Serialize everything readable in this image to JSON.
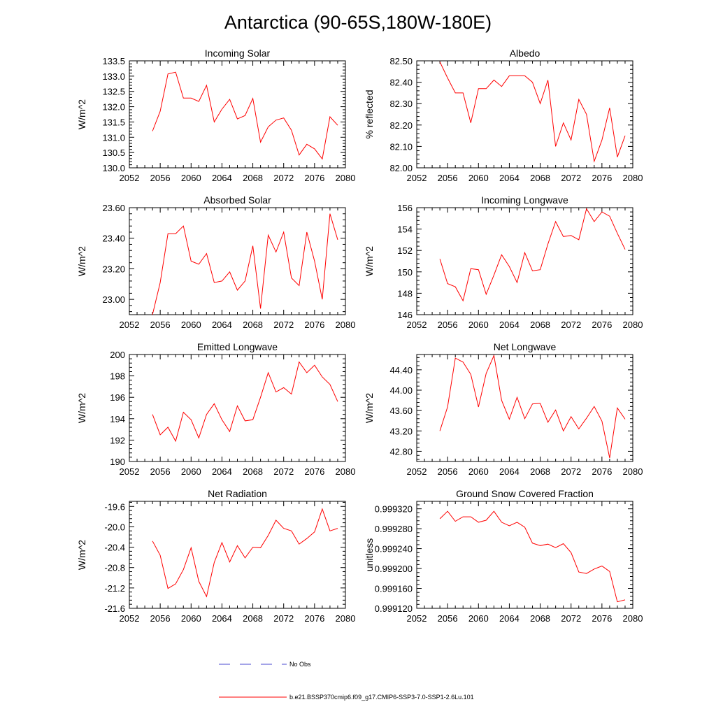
{
  "title": "Antarctica (90-65S,180W-180E)",
  "colors": {
    "series": "#ff0000",
    "obs": "#4a4ad0",
    "axis": "#000000"
  },
  "legend": [
    {
      "label": "No Obs",
      "style": "dashed",
      "color": "#4a4ad0"
    },
    {
      "label": "b.e21.BSSP370cmip6.f09_g17.CMIP6-SSP3-7.0-SSP1-2.6Lu.101",
      "style": "solid",
      "color": "#ff0000"
    }
  ],
  "chart_data": [
    {
      "type": "line",
      "title": "Incoming Solar",
      "ylabel": "W/m^2",
      "xlim": [
        2052,
        2080
      ],
      "xticks": [
        "2052",
        "2056",
        "2060",
        "2064",
        "2068",
        "2072",
        "2076",
        "2080"
      ],
      "ylim": [
        130.0,
        133.5
      ],
      "yticks": [
        "130.0",
        "130.5",
        "131.0",
        "131.5",
        "132.0",
        "132.5",
        "133.0",
        "133.5"
      ],
      "x": [
        2055,
        2056,
        2057,
        2058,
        2059,
        2060,
        2061,
        2062,
        2063,
        2064,
        2065,
        2066,
        2067,
        2068,
        2069,
        2070,
        2071,
        2072,
        2073,
        2074,
        2075,
        2076,
        2077,
        2078,
        2079
      ],
      "y": [
        131.2,
        131.85,
        133.07,
        133.13,
        132.28,
        132.28,
        132.17,
        132.7,
        131.5,
        131.92,
        132.24,
        131.6,
        131.71,
        132.27,
        130.84,
        131.34,
        131.56,
        131.63,
        131.23,
        130.42,
        130.77,
        130.62,
        130.29,
        131.67,
        131.39
      ]
    },
    {
      "type": "line",
      "title": "Albedo",
      "ylabel": "% reflected",
      "xlim": [
        2052,
        2080
      ],
      "xticks": [
        "2052",
        "2056",
        "2060",
        "2064",
        "2068",
        "2072",
        "2076",
        "2080"
      ],
      "ylim": [
        82.0,
        82.5
      ],
      "yticks": [
        "82.00",
        "82.10",
        "82.20",
        "82.30",
        "82.40",
        "82.50"
      ],
      "x": [
        2055,
        2056,
        2057,
        2058,
        2059,
        2060,
        2061,
        2062,
        2063,
        2064,
        2065,
        2066,
        2067,
        2068,
        2069,
        2070,
        2071,
        2072,
        2073,
        2074,
        2075,
        2076,
        2077,
        2078,
        2079
      ],
      "y": [
        82.495,
        82.42,
        82.35,
        82.35,
        82.21,
        82.37,
        82.37,
        82.41,
        82.38,
        82.43,
        82.43,
        82.43,
        82.4,
        82.3,
        82.41,
        82.1,
        82.21,
        82.13,
        82.32,
        82.25,
        82.03,
        82.13,
        82.28,
        82.05,
        82.15
      ]
    },
    {
      "type": "line",
      "title": "Absorbed Solar",
      "ylabel": "W/m^2",
      "xlim": [
        2052,
        2080
      ],
      "xticks": [
        "2052",
        "2056",
        "2060",
        "2064",
        "2068",
        "2072",
        "2076",
        "2080"
      ],
      "ylim": [
        22.9,
        23.6
      ],
      "yticks": [
        "23.00",
        "23.20",
        "23.40",
        "23.60"
      ],
      "x": [
        2055,
        2056,
        2057,
        2058,
        2059,
        2060,
        2061,
        2062,
        2063,
        2064,
        2065,
        2066,
        2067,
        2068,
        2069,
        2070,
        2071,
        2072,
        2073,
        2074,
        2075,
        2076,
        2077,
        2078,
        2079
      ],
      "y": [
        22.9,
        23.11,
        23.43,
        23.43,
        23.48,
        23.25,
        23.23,
        23.3,
        23.11,
        23.12,
        23.18,
        23.06,
        23.12,
        23.35,
        22.94,
        23.42,
        23.31,
        23.44,
        23.14,
        23.09,
        23.44,
        23.25,
        23.0,
        23.56,
        23.39
      ]
    },
    {
      "type": "line",
      "title": "Incoming Longwave",
      "ylabel": "W/m^2",
      "xlim": [
        2052,
        2080
      ],
      "xticks": [
        "2052",
        "2056",
        "2060",
        "2064",
        "2068",
        "2072",
        "2076",
        "2080"
      ],
      "ylim": [
        146,
        156
      ],
      "yticks": [
        "146",
        "148",
        "150",
        "152",
        "154",
        "156"
      ],
      "x": [
        2055,
        2056,
        2057,
        2058,
        2059,
        2060,
        2061,
        2062,
        2063,
        2064,
        2065,
        2066,
        2067,
        2068,
        2069,
        2070,
        2071,
        2072,
        2073,
        2074,
        2075,
        2076,
        2077,
        2078,
        2079
      ],
      "y": [
        151.2,
        148.9,
        148.6,
        147.3,
        150.3,
        150.2,
        147.9,
        149.7,
        151.6,
        150.5,
        149.0,
        151.8,
        150.1,
        150.2,
        152.6,
        154.7,
        153.3,
        153.4,
        153.0,
        155.9,
        154.7,
        155.6,
        155.2,
        153.6,
        152.1
      ]
    },
    {
      "type": "line",
      "title": "Emitted Longwave",
      "ylabel": "W/m^2",
      "xlim": [
        2052,
        2080
      ],
      "xticks": [
        "2052",
        "2056",
        "2060",
        "2064",
        "2068",
        "2072",
        "2076",
        "2080"
      ],
      "ylim": [
        190,
        200
      ],
      "yticks": [
        "190",
        "192",
        "194",
        "196",
        "198",
        "200"
      ],
      "x": [
        2055,
        2056,
        2057,
        2058,
        2059,
        2060,
        2061,
        2062,
        2063,
        2064,
        2065,
        2066,
        2067,
        2068,
        2069,
        2070,
        2071,
        2072,
        2073,
        2074,
        2075,
        2076,
        2077,
        2078,
        2079
      ],
      "y": [
        194.4,
        192.5,
        193.2,
        191.9,
        194.6,
        193.9,
        192.2,
        194.4,
        195.4,
        193.9,
        192.8,
        195.2,
        193.8,
        193.9,
        196.0,
        198.3,
        196.5,
        196.9,
        196.3,
        199.3,
        198.3,
        199.0,
        197.9,
        197.2,
        195.6
      ]
    },
    {
      "type": "line",
      "title": "Net Longwave",
      "ylabel": "W/m^2",
      "xlim": [
        2052,
        2080
      ],
      "xticks": [
        "2052",
        "2056",
        "2060",
        "2064",
        "2068",
        "2072",
        "2076",
        "2080"
      ],
      "ylim": [
        42.6,
        44.7
      ],
      "yticks": [
        "42.80",
        "43.20",
        "43.60",
        "44.00",
        "44.40"
      ],
      "x": [
        2055,
        2056,
        2057,
        2058,
        2059,
        2060,
        2061,
        2062,
        2063,
        2064,
        2065,
        2066,
        2067,
        2068,
        2069,
        2070,
        2071,
        2072,
        2073,
        2074,
        2075,
        2076,
        2077,
        2078,
        2079
      ],
      "y": [
        43.2,
        43.67,
        44.63,
        44.55,
        44.31,
        43.67,
        44.33,
        44.68,
        43.8,
        43.43,
        43.86,
        43.44,
        43.73,
        43.74,
        43.37,
        43.61,
        43.2,
        43.48,
        43.24,
        43.45,
        43.68,
        43.39,
        42.67,
        43.65,
        43.43
      ]
    },
    {
      "type": "line",
      "title": "Net Radiation",
      "ylabel": "W/m^2",
      "xlim": [
        2052,
        2080
      ],
      "xticks": [
        "2052",
        "2056",
        "2060",
        "2064",
        "2068",
        "2072",
        "2076",
        "2080"
      ],
      "ylim": [
        -21.6,
        -19.5
      ],
      "yticks": [
        "-21.6",
        "-21.2",
        "-20.8",
        "-20.4",
        "-20.0",
        "-19.6"
      ],
      "x": [
        2055,
        2056,
        2057,
        2058,
        2059,
        2060,
        2061,
        2062,
        2063,
        2064,
        2065,
        2066,
        2067,
        2068,
        2069,
        2070,
        2071,
        2072,
        2073,
        2074,
        2075,
        2076,
        2077,
        2078,
        2079
      ],
      "y": [
        -20.28,
        -20.56,
        -21.21,
        -21.12,
        -20.84,
        -20.41,
        -21.07,
        -21.37,
        -20.7,
        -20.31,
        -20.69,
        -20.37,
        -20.61,
        -20.4,
        -20.41,
        -20.17,
        -19.87,
        -20.03,
        -20.08,
        -20.34,
        -20.23,
        -20.1,
        -19.65,
        -20.08,
        -20.03
      ]
    },
    {
      "type": "line",
      "title": "Ground Snow Covered Fraction",
      "ylabel": "unitless",
      "xlim": [
        2052,
        2080
      ],
      "xticks": [
        "2052",
        "2056",
        "2060",
        "2064",
        "2068",
        "2072",
        "2076",
        "2080"
      ],
      "ylim": [
        0.99912,
        0.999335
      ],
      "yticks": [
        "0.999120",
        "0.999160",
        "0.999200",
        "0.999240",
        "0.999280",
        "0.999320"
      ],
      "x": [
        2055,
        2056,
        2057,
        2058,
        2059,
        2060,
        2061,
        2062,
        2063,
        2064,
        2065,
        2066,
        2067,
        2068,
        2069,
        2070,
        2071,
        2072,
        2073,
        2074,
        2075,
        2076,
        2077,
        2078,
        2079
      ],
      "y": [
        0.9993,
        0.999315,
        0.999295,
        0.999304,
        0.999304,
        0.999293,
        0.999297,
        0.999315,
        0.999293,
        0.999286,
        0.999293,
        0.999283,
        0.999251,
        0.999246,
        0.999249,
        0.999242,
        0.99925,
        0.999232,
        0.999193,
        0.99919,
        0.999199,
        0.999205,
        0.999194,
        0.999133,
        0.999137
      ]
    }
  ]
}
